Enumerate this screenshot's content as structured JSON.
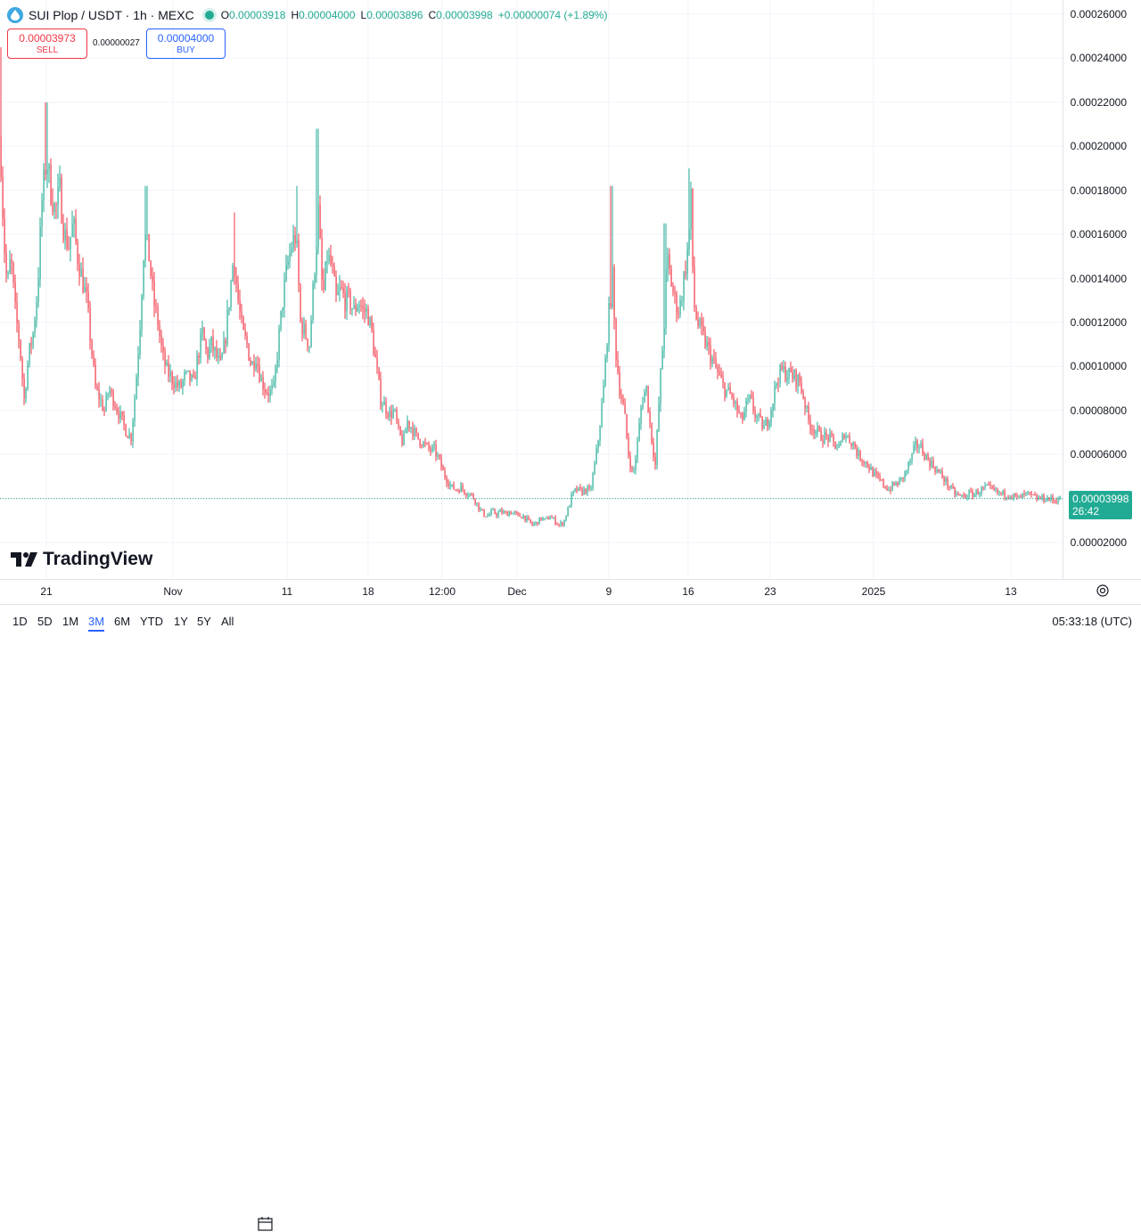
{
  "header": {
    "symbol": "SUI Plop / USDT · 1h · MEXC",
    "ohlc": [
      {
        "k": "O",
        "v": "0.00003918"
      },
      {
        "k": "H",
        "v": "0.00004000"
      },
      {
        "k": "L",
        "v": "0.00003896"
      },
      {
        "k": "C",
        "v": "0.00003998"
      }
    ],
    "change": "+0.00000074 (+1.89%)"
  },
  "trade": {
    "sell_price": "0.00003973",
    "sell_label": "SELL",
    "spread": "0.00000027",
    "buy_price": "0.00004000",
    "buy_label": "BUY"
  },
  "last_price": {
    "value": "0.00003998",
    "countdown": "26:42"
  },
  "branding": "TradingView",
  "toolbar": {
    "timeframes": [
      "1D",
      "5D",
      "1M",
      "3M",
      "6M",
      "YTD",
      "1Y",
      "5Y",
      "All"
    ],
    "active": "3M",
    "clock": "05:33:18 (UTC)"
  },
  "colors": {
    "up": "#22ab94",
    "down": "#f23645",
    "accent": "#2962ff"
  },
  "chart_data": {
    "type": "candlestick",
    "title": "SUI Plop / USDT · 1h · MEXC",
    "xlabel": "",
    "ylabel": "",
    "ylim": [
      1e-05,
      0.00027
    ],
    "y_ticks": [
      "0.00026000",
      "0.00024000",
      "0.00022000",
      "0.00020000",
      "0.00018000",
      "0.00016000",
      "0.00014000",
      "0.00012000",
      "0.00010000",
      "0.00008000",
      "0.00006000",
      "0.00004000",
      "0.00002000"
    ],
    "x_ticks": [
      "21",
      "Nov",
      "11",
      "18",
      "12:00",
      "Dec",
      "9",
      "16",
      "23",
      "2025",
      "13"
    ],
    "grid": true,
    "series": [
      {
        "name": "",
        "points": [
          [
            0,
            0.000205
          ],
          [
            4,
            0.00016
          ],
          [
            8,
            0.000135
          ],
          [
            12,
            0.00015
          ],
          [
            17,
            0.000125
          ],
          [
            22,
            0.00011
          ],
          [
            27,
            8.5e-05
          ],
          [
            32,
            0.000105
          ],
          [
            37,
            0.000115
          ],
          [
            42,
            0.000135
          ],
          [
            47,
            0.000175
          ],
          [
            52,
            0.000195
          ],
          [
            57,
            0.00018
          ],
          [
            62,
            0.00017
          ],
          [
            67,
            0.00018
          ],
          [
            72,
            0.00016
          ],
          [
            77,
            0.000155
          ],
          [
            82,
            0.000165
          ],
          [
            87,
            0.00015
          ],
          [
            92,
            0.00014
          ],
          [
            97,
            0.00013
          ],
          [
            102,
            0.00011
          ],
          [
            107,
            9e-05
          ],
          [
            112,
            8.5e-05
          ],
          [
            117,
            8e-05
          ],
          [
            122,
            9e-05
          ],
          [
            127,
            8.5e-05
          ],
          [
            132,
            8e-05
          ],
          [
            137,
            7.5e-05
          ],
          [
            142,
            7e-05
          ],
          [
            147,
            6.8e-05
          ],
          [
            152,
            9e-05
          ],
          [
            157,
            0.00012
          ],
          [
            162,
            0.00016
          ],
          [
            167,
            0.00015
          ],
          [
            172,
            0.00013
          ],
          [
            177,
            0.00012
          ],
          [
            182,
            0.000105
          ],
          [
            187,
            9.8e-05
          ],
          [
            192,
            9.5e-05
          ],
          [
            197,
            9.2e-05
          ],
          [
            202,
            9e-05
          ],
          [
            207,
            9.5e-05
          ],
          [
            212,
            9.5e-05
          ],
          [
            217,
            9.2e-05
          ],
          [
            222,
            0.000105
          ],
          [
            227,
            0.000115
          ],
          [
            232,
            0.000105
          ],
          [
            237,
            0.00011
          ],
          [
            242,
            0.000105
          ],
          [
            247,
            0.0001
          ],
          [
            252,
            0.00011
          ],
          [
            257,
            0.00013
          ],
          [
            262,
            0.00015
          ],
          [
            267,
            0.00013
          ],
          [
            272,
            0.000115
          ],
          [
            277,
            0.00011
          ],
          [
            282,
            0.0001
          ],
          [
            287,
            0.000105
          ],
          [
            292,
            9.5e-05
          ],
          [
            297,
            9e-05
          ],
          [
            302,
            8.8e-05
          ],
          [
            307,
            9e-05
          ],
          [
            312,
            0.00011
          ],
          [
            317,
            0.00013
          ],
          [
            322,
            0.000145
          ],
          [
            327,
            0.000155
          ],
          [
            332,
            0.00016
          ],
          [
            337,
            0.00012
          ],
          [
            342,
            0.000115
          ],
          [
            347,
            0.00011
          ],
          [
            352,
            0.00014
          ],
          [
            357,
            0.00017
          ],
          [
            362,
            0.00013
          ],
          [
            367,
            0.00015
          ],
          [
            372,
            0.000145
          ],
          [
            377,
            0.00013
          ],
          [
            382,
            0.000135
          ],
          [
            387,
            0.00013
          ],
          [
            392,
            0.00013
          ],
          [
            397,
            0.000125
          ],
          [
            402,
            0.00013
          ],
          [
            407,
            0.000125
          ],
          [
            412,
            0.000125
          ],
          [
            417,
            0.000115
          ],
          [
            422,
            0.0001
          ],
          [
            427,
            8.5e-05
          ],
          [
            432,
            8.2e-05
          ],
          [
            437,
            7.8e-05
          ],
          [
            442,
            8e-05
          ],
          [
            447,
            7e-05
          ],
          [
            452,
            6.5e-05
          ],
          [
            457,
            7.5e-05
          ],
          [
            462,
            7.2e-05
          ],
          [
            467,
            6.8e-05
          ],
          [
            472,
            6.6e-05
          ],
          [
            477,
            6.4e-05
          ],
          [
            482,
            6.2e-05
          ],
          [
            487,
            6.2e-05
          ],
          [
            492,
            5.8e-05
          ],
          [
            497,
            5.2e-05
          ],
          [
            502,
            4.8e-05
          ],
          [
            507,
            4.5e-05
          ],
          [
            512,
            4.4e-05
          ],
          [
            517,
            4.5e-05
          ],
          [
            522,
            4.3e-05
          ],
          [
            527,
            4.2e-05
          ],
          [
            532,
            4e-05
          ],
          [
            537,
            3.6e-05
          ],
          [
            542,
            3.3e-05
          ],
          [
            547,
            3.2e-05
          ],
          [
            552,
            3.4e-05
          ],
          [
            557,
            3.3e-05
          ],
          [
            562,
            3.4e-05
          ],
          [
            567,
            3.3e-05
          ],
          [
            572,
            3.4e-05
          ],
          [
            577,
            3.3e-05
          ],
          [
            582,
            3.2e-05
          ],
          [
            587,
            3.2e-05
          ],
          [
            592,
            3e-05
          ],
          [
            597,
            2.8e-05
          ],
          [
            602,
            2.9e-05
          ],
          [
            607,
            3.1e-05
          ],
          [
            612,
            3e-05
          ],
          [
            617,
            3.2e-05
          ],
          [
            622,
            3e-05
          ],
          [
            627,
            2.8e-05
          ],
          [
            632,
            2.9e-05
          ],
          [
            637,
            3.5e-05
          ],
          [
            642,
            4.2e-05
          ],
          [
            647,
            4.4e-05
          ],
          [
            652,
            4.3e-05
          ],
          [
            657,
            4.4e-05
          ],
          [
            662,
            4.3e-05
          ],
          [
            667,
            5.5e-05
          ],
          [
            672,
            7e-05
          ],
          [
            677,
            9e-05
          ],
          [
            682,
            0.00012
          ],
          [
            687,
            0.00014
          ],
          [
            690,
            0.00011
          ],
          [
            695,
            9e-05
          ],
          [
            700,
            8e-05
          ],
          [
            705,
            6e-05
          ],
          [
            710,
            5e-05
          ],
          [
            715,
            6.5e-05
          ],
          [
            720,
            8.5e-05
          ],
          [
            725,
            9e-05
          ],
          [
            730,
            7e-05
          ],
          [
            735,
            5.5e-05
          ],
          [
            740,
            9e-05
          ],
          [
            745,
            0.00012
          ],
          [
            748,
            0.00015
          ],
          [
            752,
            0.00014
          ],
          [
            757,
            0.00013
          ],
          [
            762,
            0.000125
          ],
          [
            767,
            0.00014
          ],
          [
            772,
            0.000155
          ],
          [
            775,
            0.000175
          ],
          [
            778,
            0.00013
          ],
          [
            782,
            0.00012
          ],
          [
            787,
            0.000115
          ],
          [
            792,
            0.00011
          ],
          [
            797,
            0.000105
          ],
          [
            802,
            0.0001
          ],
          [
            807,
            9.5e-05
          ],
          [
            812,
            9e-05
          ],
          [
            817,
            8.8e-05
          ],
          [
            822,
            8.5e-05
          ],
          [
            827,
            8e-05
          ],
          [
            832,
            7.5e-05
          ],
          [
            837,
            8.2e-05
          ],
          [
            842,
            8.5e-05
          ],
          [
            847,
            7.8e-05
          ],
          [
            852,
            7.5e-05
          ],
          [
            857,
            7.2e-05
          ],
          [
            862,
            7.6e-05
          ],
          [
            867,
            8.5e-05
          ],
          [
            872,
            9.5e-05
          ],
          [
            877,
            9.8e-05
          ],
          [
            882,
            9.7e-05
          ],
          [
            887,
            9.6e-05
          ],
          [
            892,
            9.5e-05
          ],
          [
            897,
            9.3e-05
          ],
          [
            902,
            8.5e-05
          ],
          [
            907,
            7.5e-05
          ],
          [
            912,
            7.2e-05
          ],
          [
            917,
            7e-05
          ],
          [
            922,
            6.8e-05
          ],
          [
            927,
            6.8e-05
          ],
          [
            932,
            6.7e-05
          ],
          [
            937,
            6.4e-05
          ],
          [
            942,
            6.3e-05
          ],
          [
            947,
            7e-05
          ],
          [
            952,
            6.7e-05
          ],
          [
            957,
            6.5e-05
          ],
          [
            962,
            6e-05
          ],
          [
            967,
            5.8e-05
          ],
          [
            972,
            5.6e-05
          ],
          [
            977,
            5.3e-05
          ],
          [
            982,
            5e-05
          ],
          [
            987,
            4.8e-05
          ],
          [
            992,
            4.6e-05
          ],
          [
            997,
            4.4e-05
          ],
          [
            1002,
            4.6e-05
          ],
          [
            1007,
            4.7e-05
          ],
          [
            1012,
            4.9e-05
          ],
          [
            1017,
            5.3e-05
          ],
          [
            1022,
            5.8e-05
          ],
          [
            1027,
            6.4e-05
          ],
          [
            1032,
            6.4e-05
          ],
          [
            1037,
            6e-05
          ],
          [
            1042,
            5.7e-05
          ],
          [
            1047,
            5.5e-05
          ],
          [
            1052,
            5.2e-05
          ],
          [
            1057,
            5e-05
          ],
          [
            1062,
            4.7e-05
          ],
          [
            1067,
            4.4e-05
          ],
          [
            1072,
            4.2e-05
          ],
          [
            1077,
            4.1e-05
          ],
          [
            1082,
            4.1e-05
          ],
          [
            1087,
            4.2e-05
          ],
          [
            1092,
            4.2e-05
          ],
          [
            1097,
            4.3e-05
          ],
          [
            1102,
            4.4e-05
          ],
          [
            1107,
            4.5e-05
          ],
          [
            1112,
            4.4e-05
          ],
          [
            1117,
            4.3e-05
          ],
          [
            1122,
            4.2e-05
          ],
          [
            1127,
            4.2e-05
          ],
          [
            1132,
            4.2e-05
          ],
          [
            1137,
            4.1e-05
          ],
          [
            1142,
            4e-05
          ],
          [
            1147,
            4.1e-05
          ],
          [
            1152,
            4.2e-05
          ],
          [
            1157,
            4.1e-05
          ],
          [
            1162,
            4e-05
          ],
          [
            1167,
            4e-05
          ],
          [
            1172,
            4e-05
          ],
          [
            1177,
            4e-05
          ],
          [
            1182,
            3.9e-05
          ],
          [
            1187,
            4e-05
          ]
        ]
      }
    ]
  }
}
